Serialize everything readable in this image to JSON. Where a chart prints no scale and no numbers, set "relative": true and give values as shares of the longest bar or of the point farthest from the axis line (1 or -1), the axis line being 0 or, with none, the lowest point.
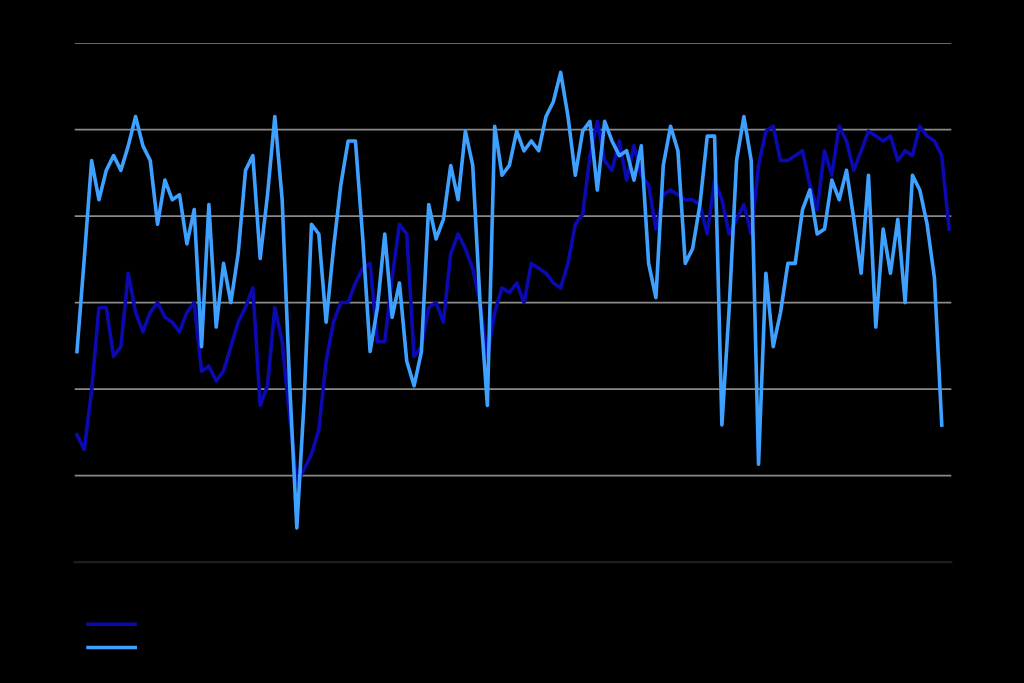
{
  "chart_data": {
    "type": "line",
    "relative": true,
    "grid": "y",
    "line_style": "solid",
    "marker": "none",
    "categories": [
      null,
      null,
      null,
      null,
      null,
      null,
      null,
      null,
      null,
      null,
      null,
      null,
      null,
      null,
      null,
      null,
      null,
      null,
      null,
      null,
      null,
      null,
      null,
      null,
      null,
      null,
      null,
      null,
      null,
      null,
      null,
      null,
      null,
      null,
      null,
      null,
      null,
      null,
      null,
      null,
      null,
      null,
      null,
      null,
      null,
      null,
      null,
      null,
      null,
      null,
      null,
      null,
      null,
      null,
      null,
      null,
      null,
      null,
      null,
      null,
      null,
      null,
      null,
      null,
      null,
      null,
      null,
      null,
      null,
      null,
      null,
      null,
      null,
      null,
      null,
      null,
      null,
      null,
      null,
      null,
      null,
      null,
      null,
      null,
      null,
      null,
      null,
      null,
      null,
      null,
      null,
      null,
      null,
      null,
      null,
      null,
      null,
      null,
      null,
      null,
      null,
      null,
      null,
      null,
      null,
      null,
      null,
      null,
      null,
      null,
      null,
      null,
      null,
      null,
      null,
      null,
      null,
      null,
      null,
      null
    ],
    "series": [
      {
        "color": "#0a0ab0",
        "values": [
          0.26,
          0.23,
          0.35,
          0.52,
          0.52,
          0.42,
          0.44,
          0.59,
          0.51,
          0.47,
          0.51,
          0.53,
          0.5,
          0.49,
          0.47,
          0.51,
          0.53,
          0.39,
          0.4,
          0.37,
          0.39,
          0.44,
          0.49,
          0.52,
          0.56,
          0.32,
          0.36,
          0.52,
          0.45,
          0.3,
          0.16,
          0.19,
          0.22,
          0.27,
          0.41,
          0.49,
          0.53,
          0.53,
          0.57,
          0.6,
          0.61,
          0.45,
          0.45,
          0.58,
          0.69,
          0.67,
          0.42,
          0.44,
          0.52,
          0.53,
          0.49,
          0.63,
          0.67,
          0.64,
          0.6,
          0.53,
          0.42,
          0.51,
          0.56,
          0.55,
          0.57,
          0.53,
          0.61,
          0.6,
          0.59,
          0.57,
          0.56,
          0.61,
          0.69,
          0.71,
          0.83,
          0.9,
          0.82,
          0.8,
          0.86,
          0.78,
          0.85,
          0.79,
          0.77,
          0.68,
          0.75,
          0.76,
          0.75,
          0.74,
          0.74,
          0.73,
          0.67,
          0.78,
          0.74,
          0.67,
          0.7,
          0.73,
          0.67,
          0.81,
          0.88,
          0.89,
          0.82,
          0.82,
          0.83,
          0.84,
          0.77,
          0.72,
          0.84,
          0.79,
          0.89,
          0.86,
          0.8,
          0.84,
          0.88,
          0.87,
          0.86,
          0.87,
          0.82,
          0.84,
          0.83,
          0.89,
          0.87,
          0.86,
          0.83,
          0.68
        ]
      },
      {
        "color": "#3ea0ff",
        "values": [
          0.43,
          0.62,
          0.82,
          0.74,
          0.8,
          0.83,
          0.8,
          0.85,
          0.91,
          0.85,
          0.82,
          0.69,
          0.78,
          0.74,
          0.75,
          0.65,
          0.72,
          0.44,
          0.73,
          0.48,
          0.61,
          0.53,
          0.63,
          0.8,
          0.83,
          0.62,
          0.75,
          0.91,
          0.74,
          0.37,
          0.07,
          0.33,
          0.69,
          0.67,
          0.49,
          0.64,
          0.77,
          0.86,
          0.86,
          0.66,
          0.43,
          0.52,
          0.67,
          0.5,
          0.57,
          0.41,
          0.36,
          0.43,
          0.73,
          0.66,
          0.7,
          0.81,
          0.74,
          0.88,
          0.81,
          0.53,
          0.32,
          0.89,
          0.79,
          0.81,
          0.88,
          0.84,
          0.86,
          0.84,
          0.91,
          0.94,
          1,
          0.91,
          0.79,
          0.88,
          0.9,
          0.76,
          0.9,
          0.86,
          0.83,
          0.84,
          0.78,
          0.85,
          0.61,
          0.54,
          0.81,
          0.89,
          0.84,
          0.61,
          0.64,
          0.73,
          0.87,
          0.87,
          0.28,
          0.52,
          0.82,
          0.91,
          0.82,
          0.2,
          0.59,
          0.44,
          0.51,
          0.61,
          0.61,
          0.72,
          0.76,
          0.67,
          0.68,
          0.78,
          0.74,
          0.8,
          0.7,
          0.59,
          0.79,
          0.48,
          0.68,
          0.59,
          0.7,
          0.53,
          0.79,
          0.76,
          0.69,
          0.58,
          0.28,
          null
        ]
      }
    ]
  }
}
